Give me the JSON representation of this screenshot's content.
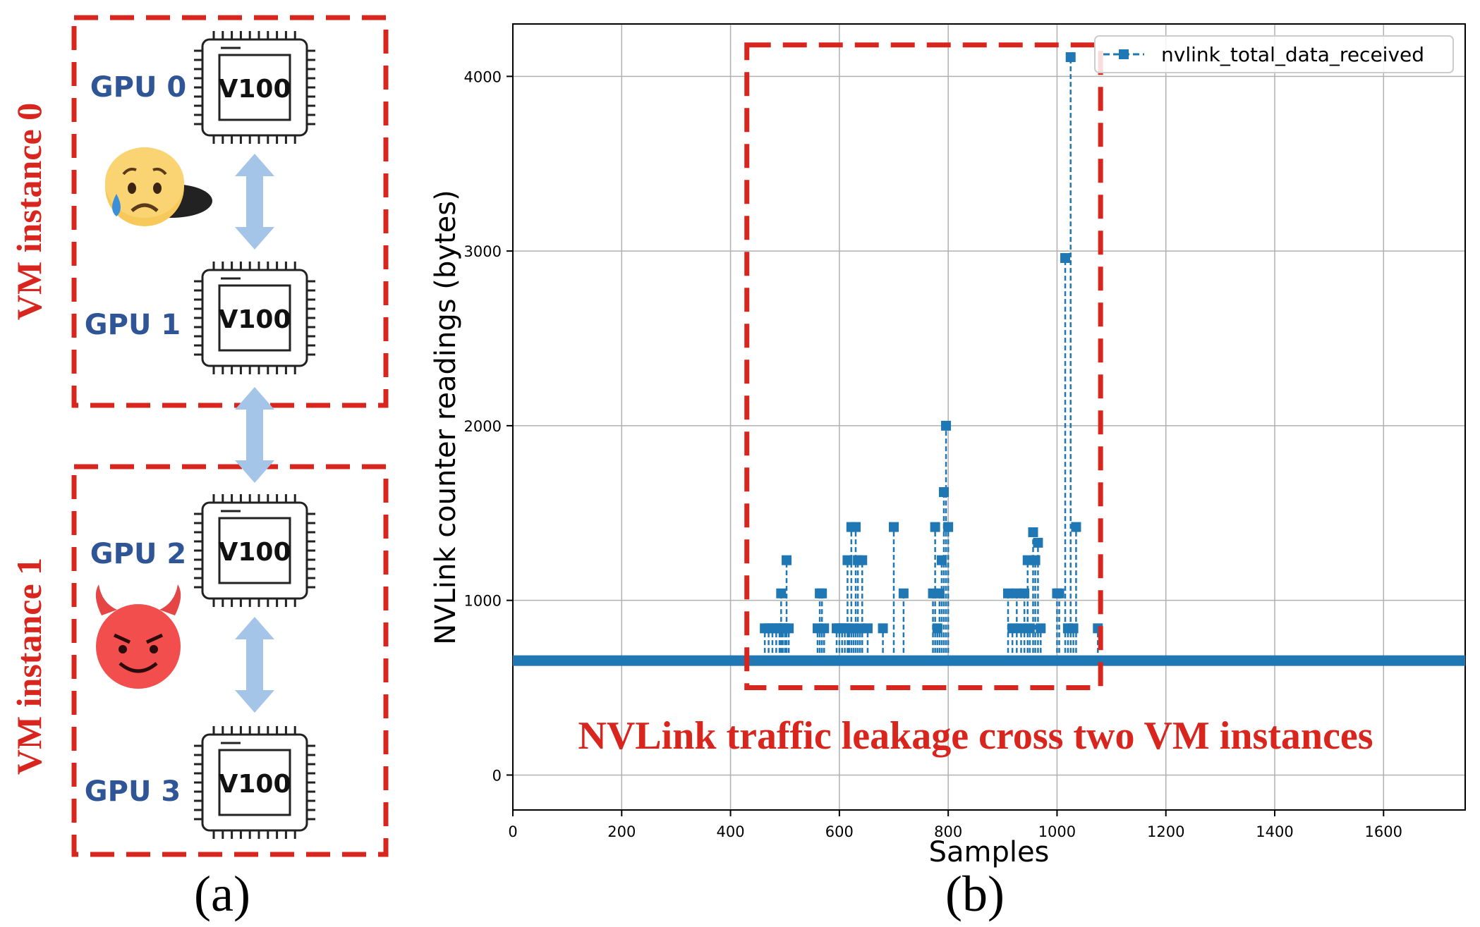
{
  "panel_a": {
    "caption": "(a)",
    "vm_instances": [
      {
        "label": "VM instance 0",
        "gpus": [
          "GPU 0",
          "GPU 1"
        ],
        "emoji": "worried-face"
      },
      {
        "label": "VM instance 1",
        "gpus": [
          "GPU 2",
          "GPU 3"
        ],
        "emoji": "devil-face"
      }
    ],
    "chip_label": "V100",
    "colors": {
      "dash_red": "#d8261f",
      "gpu_label": "#2f5597",
      "arrow": "#a4c4e8",
      "chip_stroke": "#222222"
    }
  },
  "panel_b": {
    "caption": "(b)",
    "annotation": "NVLink traffic leakage cross two VM instances",
    "colors": {
      "series": "#1f77b4",
      "annotation": "#d8261f",
      "grid": "#b0b0b0"
    }
  },
  "chart_data": {
    "type": "line",
    "title": "",
    "xlabel": "Samples",
    "ylabel": "NVLink counter readings (bytes)",
    "xlim": [
      0,
      1750
    ],
    "ylim": [
      -200,
      4300
    ],
    "xticks": [
      "0",
      "200",
      "400",
      "600",
      "800",
      "1000",
      "1200",
      "1400",
      "1600"
    ],
    "yticks": [
      "0",
      "1000",
      "2000",
      "3000",
      "4000"
    ],
    "grid": true,
    "legend_position": "top-right",
    "baseline": 655,
    "highlight_x_range": [
      430,
      1080
    ],
    "highlight_y_range": [
      500,
      4180
    ],
    "series": [
      {
        "name": "nvlink_total_data_received",
        "marker": "square",
        "linestyle": "dashed",
        "x": [
          463,
          470,
          477,
          484,
          490,
          493,
          496,
          500,
          503,
          507,
          560,
          564,
          568,
          572,
          595,
          600,
          605,
          610,
          615,
          618,
          622,
          626,
          630,
          634,
          638,
          642,
          652,
          680,
          700,
          718,
          772,
          776,
          780,
          784,
          788,
          792,
          796,
          800,
          910,
          918,
          926,
          934,
          940,
          946,
          950,
          956,
          960,
          965,
          970,
          1000,
          1004,
          1015,
          1020,
          1025,
          1030,
          1035,
          1075
        ],
        "y": [
          840,
          840,
          840,
          840,
          840,
          1040,
          840,
          840,
          1230,
          840,
          840,
          1040,
          1040,
          840,
          840,
          840,
          840,
          840,
          1230,
          840,
          1420,
          840,
          1420,
          1230,
          840,
          1230,
          840,
          840,
          1420,
          1040,
          1040,
          1420,
          840,
          1040,
          1230,
          1620,
          2000,
          1420,
          1040,
          840,
          1040,
          840,
          1040,
          1230,
          840,
          1390,
          1230,
          1330,
          840,
          1040,
          1040,
          2960,
          840,
          4110,
          840,
          1420,
          840
        ]
      }
    ]
  }
}
